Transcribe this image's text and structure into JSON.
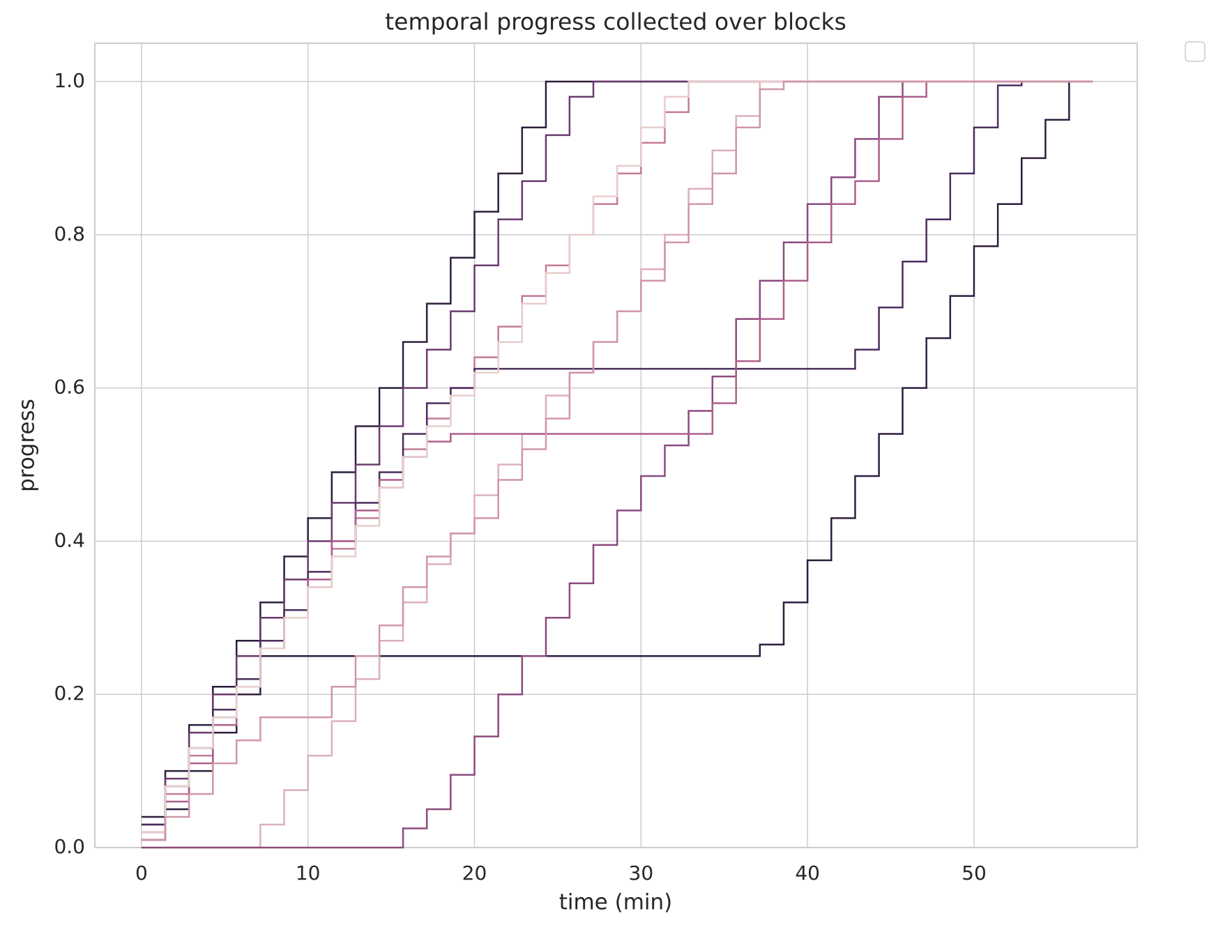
{
  "chart_data": {
    "type": "line",
    "drawstyle": "steps-post",
    "title": "temporal progress collected over blocks",
    "xlabel": "time (min)",
    "ylabel": "progress",
    "xlim": [
      -2.8,
      59.8
    ],
    "ylim": [
      0,
      1.05
    ],
    "xticks": [
      0,
      10,
      20,
      30,
      40,
      50
    ],
    "yticks": [
      {
        "value": 0,
        "label": "0.0"
      },
      {
        "value": 0.2,
        "label": "0.2"
      },
      {
        "value": 0.4,
        "label": "0.4"
      },
      {
        "value": 0.6,
        "label": "0.6"
      },
      {
        "value": 0.8,
        "label": "0.8"
      },
      {
        "value": 1,
        "label": "1.0"
      }
    ],
    "grid": true,
    "series": [
      {
        "color": "#2d1e3e",
        "x": [
          0,
          1.43,
          2.86,
          4.29,
          5.71,
          7.14,
          8.57,
          10,
          11.43,
          12.86,
          14.29,
          15.71,
          17.14,
          18.57,
          20,
          21.43,
          22.86,
          24.29,
          57.14
        ],
        "values": [
          0.04,
          0.1,
          0.16,
          0.21,
          0.27,
          0.32,
          0.38,
          0.43,
          0.49,
          0.55,
          0.6,
          0.66,
          0.71,
          0.77,
          0.83,
          0.88,
          0.94,
          1.0,
          1.0
        ]
      },
      {
        "color": "#6b3a6e",
        "x": [
          0,
          1.43,
          2.86,
          4.29,
          5.71,
          7.14,
          8.57,
          10,
          11.43,
          12.86,
          14.29,
          15.71,
          17.14,
          18.57,
          20,
          21.43,
          22.86,
          24.29,
          25.71,
          27.14,
          57.14
        ],
        "values": [
          0.03,
          0.09,
          0.15,
          0.2,
          0.25,
          0.3,
          0.35,
          0.4,
          0.45,
          0.5,
          0.55,
          0.6,
          0.65,
          0.7,
          0.76,
          0.82,
          0.87,
          0.93,
          0.98,
          1.0,
          1.0
        ]
      },
      {
        "color": "#c27b99",
        "x": [
          0,
          1.43,
          2.86,
          4.29,
          5.71,
          7.14,
          8.57,
          10,
          11.43,
          12.86,
          14.29,
          15.71,
          17.14,
          18.57,
          20,
          21.43,
          22.86,
          24.29,
          25.71,
          27.14,
          28.57,
          30,
          31.43,
          32.86,
          57.14
        ],
        "values": [
          0.02,
          0.07,
          0.12,
          0.17,
          0.22,
          0.26,
          0.3,
          0.34,
          0.39,
          0.43,
          0.47,
          0.52,
          0.56,
          0.6,
          0.64,
          0.68,
          0.72,
          0.76,
          0.8,
          0.84,
          0.88,
          0.92,
          0.96,
          1.0,
          1.0
        ]
      },
      {
        "color": "#dcb0b8",
        "x": [
          0,
          1.43,
          2.86,
          4.29,
          5.71,
          7.14,
          8.57,
          10,
          11.43,
          12.86,
          14.29,
          15.71,
          17.14,
          18.57,
          20,
          21.43,
          22.86,
          24.29,
          25.71,
          27.14,
          28.57,
          30,
          31.43,
          32.86,
          34.29,
          35.71,
          37.14,
          57.14
        ],
        "values": [
          0,
          0,
          0,
          0,
          0,
          0.03,
          0.075,
          0.12,
          0.165,
          0.22,
          0.27,
          0.32,
          0.37,
          0.41,
          0.46,
          0.5,
          0.54,
          0.59,
          0.62,
          0.66,
          0.7,
          0.755,
          0.8,
          0.86,
          0.91,
          0.955,
          1.0,
          1.0
        ]
      },
      {
        "color": "#2d1e3e",
        "x": [
          0,
          1.43,
          2.86,
          4.29,
          5.71,
          7.14,
          37.14,
          38.57,
          40,
          41.43,
          42.86,
          44.29,
          45.71,
          47.14,
          48.57,
          50,
          51.43,
          52.86,
          54.29,
          55.71,
          57.14
        ],
        "values": [
          0.01,
          0.05,
          0.1,
          0.15,
          0.2,
          0.25,
          0.265,
          0.32,
          0.375,
          0.43,
          0.485,
          0.54,
          0.6,
          0.665,
          0.72,
          0.785,
          0.84,
          0.9,
          0.95,
          1.0,
          1.0
        ]
      },
      {
        "color": "#8c4a7d",
        "x": [
          0,
          15.71,
          17.14,
          18.57,
          20,
          21.43,
          22.86,
          24.29,
          25.71,
          27.14,
          28.57,
          30,
          31.43,
          32.86,
          34.29,
          35.71,
          37.14,
          38.57,
          40,
          41.43,
          42.86,
          44.29,
          45.71,
          57.14
        ],
        "values": [
          0,
          0.025,
          0.05,
          0.095,
          0.145,
          0.2,
          0.25,
          0.3,
          0.345,
          0.395,
          0.44,
          0.485,
          0.525,
          0.57,
          0.615,
          0.69,
          0.74,
          0.79,
          0.84,
          0.875,
          0.925,
          0.98,
          1.0,
          1.0
        ]
      },
      {
        "color": "#4b2c5e",
        "x": [
          0,
          1.43,
          2.86,
          4.29,
          5.71,
          7.14,
          8.57,
          10,
          11.43,
          12.86,
          14.29,
          15.71,
          17.14,
          18.57,
          20,
          42.86,
          44.29,
          45.71,
          47.14,
          48.57,
          50,
          51.43,
          52.86,
          57.14
        ],
        "values": [
          0.03,
          0.08,
          0.13,
          0.18,
          0.22,
          0.27,
          0.31,
          0.36,
          0.4,
          0.45,
          0.49,
          0.54,
          0.58,
          0.6,
          0.625,
          0.65,
          0.705,
          0.765,
          0.82,
          0.88,
          0.94,
          0.995,
          1.0,
          1.0
        ]
      },
      {
        "color": "#ad5e8b",
        "x": [
          0,
          1.43,
          2.86,
          4.29,
          5.71,
          7.14,
          8.57,
          10,
          11.43,
          12.86,
          14.29,
          15.71,
          17.14,
          18.57,
          34.29,
          35.71,
          37.14,
          38.57,
          40,
          41.43,
          42.86,
          44.29,
          45.71,
          47.14,
          57.14
        ],
        "values": [
          0.02,
          0.06,
          0.11,
          0.16,
          0.21,
          0.26,
          0.3,
          0.35,
          0.4,
          0.44,
          0.48,
          0.51,
          0.53,
          0.54,
          0.58,
          0.635,
          0.69,
          0.74,
          0.79,
          0.84,
          0.87,
          0.925,
          0.98,
          1.0,
          1.0
        ]
      },
      {
        "color": "#e8cdcc",
        "x": [
          0,
          1.43,
          2.86,
          4.29,
          5.71,
          7.14,
          8.57,
          10,
          11.43,
          12.86,
          14.29,
          15.71,
          17.14,
          18.57,
          20,
          21.43,
          22.86,
          24.29,
          25.71,
          27.14,
          28.57,
          30,
          31.43,
          32.86,
          57.14
        ],
        "values": [
          0.02,
          0.08,
          0.13,
          0.17,
          0.21,
          0.26,
          0.3,
          0.34,
          0.38,
          0.42,
          0.47,
          0.51,
          0.55,
          0.59,
          0.62,
          0.66,
          0.71,
          0.75,
          0.8,
          0.85,
          0.89,
          0.94,
          0.98,
          1.0,
          1.0
        ]
      },
      {
        "color": "#d096a8",
        "x": [
          0,
          1.43,
          2.86,
          4.29,
          5.71,
          7.14,
          8.57,
          10,
          11.43,
          12.86,
          14.29,
          15.71,
          17.14,
          18.57,
          20,
          21.43,
          22.86,
          24.29,
          25.71,
          27.14,
          28.57,
          30,
          31.43,
          32.86,
          34.29,
          35.71,
          37.14,
          38.57,
          57.14
        ],
        "values": [
          0.01,
          0.04,
          0.07,
          0.11,
          0.14,
          0.17,
          0.17,
          0.17,
          0.21,
          0.25,
          0.29,
          0.34,
          0.38,
          0.41,
          0.43,
          0.48,
          0.52,
          0.56,
          0.62,
          0.66,
          0.7,
          0.74,
          0.79,
          0.84,
          0.88,
          0.94,
          0.99,
          1.0,
          1.0
        ]
      }
    ]
  }
}
